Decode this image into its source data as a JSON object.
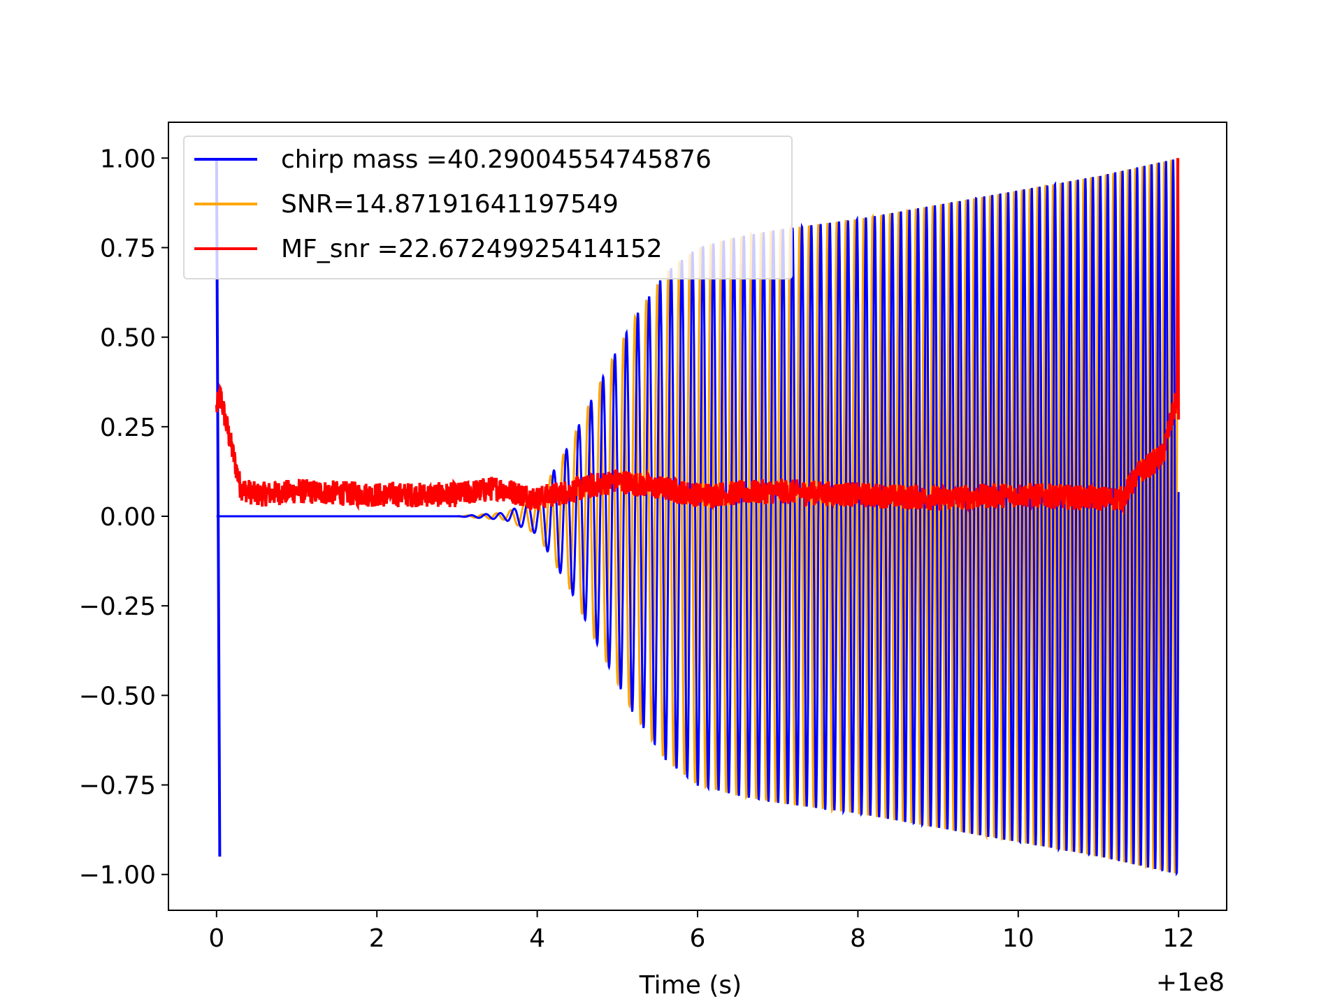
{
  "chart_data": {
    "type": "line",
    "title": "",
    "xlabel": "Time (s)",
    "ylabel": "",
    "x_offset_label": "+1e8",
    "xlim": [
      -0.6,
      12.6
    ],
    "ylim": [
      -1.1,
      1.1
    ],
    "x_ticks": [
      0,
      2,
      4,
      6,
      8,
      10,
      12
    ],
    "y_ticks": [
      1.0,
      0.75,
      0.5,
      0.25,
      0.0,
      -0.25,
      -0.5,
      -0.75,
      -1.0
    ],
    "x_tick_labels": [
      "0",
      "2",
      "4",
      "6",
      "8",
      "10",
      "12"
    ],
    "y_tick_labels": [
      "1.00",
      "0.75",
      "0.50",
      "0.25",
      "0.00",
      "−0.25",
      "−0.50",
      "−0.75",
      "−1.00"
    ],
    "grid": false,
    "legend_position": "top-left",
    "series": [
      {
        "name": "chirp mass =40.29004554745876",
        "color": "#0000ff",
        "description_points": {
          "envelope_x": [
            0,
            3.0,
            3.6,
            4.0,
            4.4,
            4.8,
            5.2,
            5.6,
            6.0,
            6.5,
            7.0,
            8.0,
            9.0,
            10.0,
            11.0,
            12.0
          ],
          "envelope_y": [
            0,
            0.0,
            0.01,
            0.05,
            0.2,
            0.38,
            0.55,
            0.68,
            0.75,
            0.78,
            0.8,
            0.83,
            0.87,
            0.91,
            0.95,
            1.0
          ],
          "initial_spike": [
            [
              0.0,
              1.0
            ],
            [
              0.04,
              -0.95
            ]
          ]
        }
      },
      {
        "name": "SNR=14.87191641197549",
        "color": "#ffa500",
        "description_points": {
          "envelope_x": [
            0,
            3.0,
            3.6,
            4.0,
            4.4,
            4.8,
            5.2,
            5.6,
            6.0,
            6.5,
            7.0,
            8.0,
            9.0,
            10.0,
            11.0,
            12.0
          ],
          "envelope_y": [
            0,
            0.0,
            0.01,
            0.05,
            0.2,
            0.38,
            0.55,
            0.68,
            0.75,
            0.78,
            0.8,
            0.83,
            0.87,
            0.91,
            0.95,
            1.0
          ]
        }
      },
      {
        "name": "MF_snr =22.67249925414152",
        "color": "#ff0000",
        "description_points": {
          "x": [
            0.0,
            0.05,
            0.1,
            0.2,
            0.3,
            0.5,
            1.0,
            2.0,
            3.0,
            3.5,
            4.0,
            5.0,
            6.0,
            7.0,
            8.0,
            9.0,
            10.0,
            11.0,
            11.3,
            11.5,
            11.8,
            12.0
          ],
          "y": [
            0.3,
            0.34,
            0.28,
            0.18,
            0.08,
            0.06,
            0.07,
            0.06,
            0.06,
            0.08,
            0.05,
            0.1,
            0.06,
            0.07,
            0.06,
            0.05,
            0.06,
            0.05,
            0.05,
            0.12,
            0.17,
            0.35
          ]
        }
      }
    ]
  }
}
